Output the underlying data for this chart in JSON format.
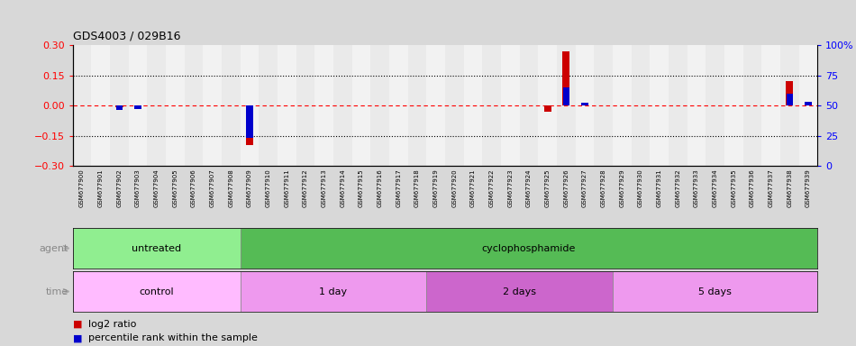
{
  "title": "GDS4003 / 029B16",
  "samples": [
    "GSM677900",
    "GSM677901",
    "GSM677902",
    "GSM677903",
    "GSM677904",
    "GSM677905",
    "GSM677906",
    "GSM677907",
    "GSM677908",
    "GSM677909",
    "GSM677910",
    "GSM677911",
    "GSM677912",
    "GSM677913",
    "GSM677914",
    "GSM677915",
    "GSM677916",
    "GSM677917",
    "GSM677918",
    "GSM677919",
    "GSM677920",
    "GSM677921",
    "GSM677922",
    "GSM677923",
    "GSM677924",
    "GSM677925",
    "GSM677926",
    "GSM677927",
    "GSM677928",
    "GSM677929",
    "GSM677930",
    "GSM677931",
    "GSM677932",
    "GSM677933",
    "GSM677934",
    "GSM677935",
    "GSM677936",
    "GSM677937",
    "GSM677938",
    "GSM677939"
  ],
  "log2_ratio": [
    0.0,
    0.0,
    -0.01,
    -0.01,
    0.0,
    0.0,
    0.0,
    0.0,
    0.0,
    -0.195,
    0.0,
    0.0,
    0.0,
    0.0,
    0.0,
    0.0,
    0.0,
    0.0,
    0.0,
    0.0,
    0.0,
    0.0,
    0.0,
    0.0,
    0.0,
    -0.03,
    0.27,
    0.0,
    0.0,
    0.0,
    0.0,
    0.0,
    0.0,
    0.0,
    0.0,
    0.0,
    0.0,
    0.0,
    0.12,
    0.0
  ],
  "percentile": [
    50,
    50,
    46,
    47,
    50,
    50,
    50,
    50,
    50,
    23,
    50,
    50,
    50,
    50,
    50,
    50,
    50,
    50,
    50,
    50,
    50,
    50,
    50,
    50,
    50,
    49,
    65,
    52,
    50,
    50,
    50,
    50,
    50,
    50,
    50,
    50,
    50,
    50,
    60,
    53
  ],
  "ylim_left": [
    -0.3,
    0.3
  ],
  "ylim_right": [
    0,
    100
  ],
  "yticks_left": [
    -0.3,
    -0.15,
    0,
    0.15,
    0.3
  ],
  "yticks_right": [
    0,
    25,
    50,
    75,
    100
  ],
  "ytick_labels_right": [
    "0",
    "25",
    "50",
    "75",
    "100%"
  ],
  "hline_dotted": [
    -0.15,
    0.15
  ],
  "bar_color_red": "#cc0000",
  "bar_color_blue": "#0000cc",
  "agent_row": [
    {
      "label": "untreated",
      "start": 0,
      "end": 9,
      "color": "#90ee90"
    },
    {
      "label": "cyclophosphamide",
      "start": 9,
      "end": 40,
      "color": "#55bb55"
    }
  ],
  "time_row": [
    {
      "label": "control",
      "start": 0,
      "end": 9,
      "color": "#ffbbff"
    },
    {
      "label": "1 day",
      "start": 9,
      "end": 19,
      "color": "#ee99ee"
    },
    {
      "label": "2 days",
      "start": 19,
      "end": 29,
      "color": "#cc66cc"
    },
    {
      "label": "5 days",
      "start": 29,
      "end": 40,
      "color": "#ee99ee"
    }
  ],
  "legend_red": "log2 ratio",
  "legend_blue": "percentile rank within the sample"
}
